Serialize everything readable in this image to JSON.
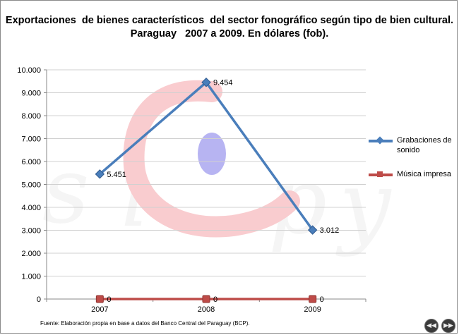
{
  "chart_data": {
    "type": "line",
    "title_lines": [
      "Exportaciones  de bienes característicos  del sector fonográfico según tipo de bien cultural.",
      "Paraguay   2007 a 2009. En dólares (fob)."
    ],
    "categories": [
      "2007",
      "2008",
      "2009"
    ],
    "series": [
      {
        "name": "Grabaciones de sonido",
        "values": [
          5451,
          9454,
          3012
        ],
        "labels": [
          "5.451",
          "9.454",
          "3.012"
        ],
        "color": "#4a7ebb",
        "marker": "diamond"
      },
      {
        "name": "Música impresa",
        "values": [
          0,
          0,
          0
        ],
        "labels": [
          "0",
          "0",
          "0"
        ],
        "color": "#be4b48",
        "marker": "square"
      }
    ],
    "ylim": [
      0,
      10000
    ],
    "yticks": [
      0,
      1000,
      2000,
      3000,
      4000,
      5000,
      6000,
      7000,
      8000,
      9000,
      10000
    ],
    "ytick_labels": [
      "0",
      "1.000",
      "2.000",
      "3.000",
      "4.000",
      "5.000",
      "6.000",
      "7.000",
      "8.000",
      "9.000",
      "10.000"
    ],
    "grid": true,
    "legend_position": "right"
  },
  "watermark": {
    "text": "sicpy",
    "color": "#f5a3a8"
  },
  "source": "Fuente:  Elaboración propia en base a datos del Banco Central del Paraguay (BCP).",
  "nav": {
    "prev_icon": "rewind-icon",
    "next_icon": "forward-icon",
    "prev_glyph": "◀◀",
    "next_glyph": "▶▶"
  }
}
